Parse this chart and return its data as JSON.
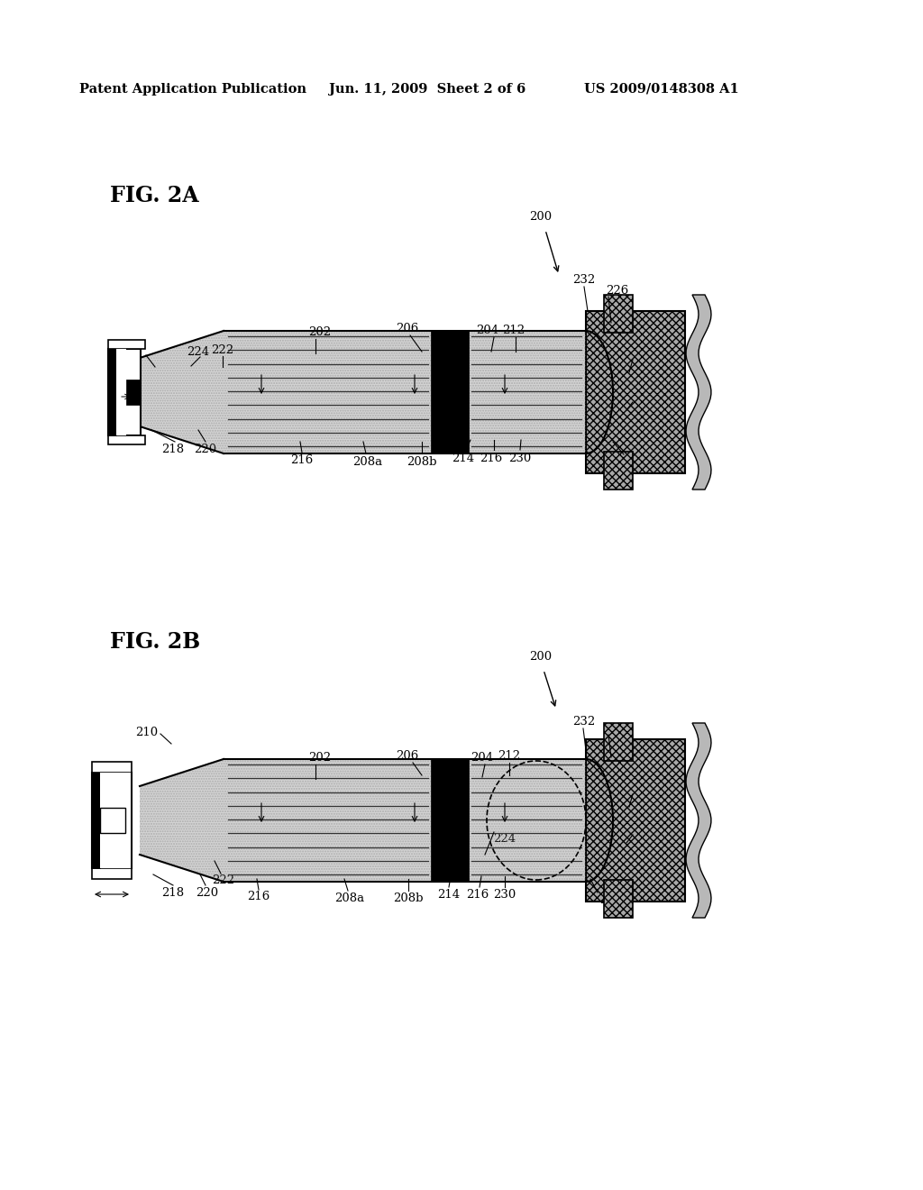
{
  "bg_color": "#ffffff",
  "header_left": "Patent Application Publication",
  "header_mid": "Jun. 11, 2009  Sheet 2 of 6",
  "header_right": "US 2009/0148308 A1"
}
